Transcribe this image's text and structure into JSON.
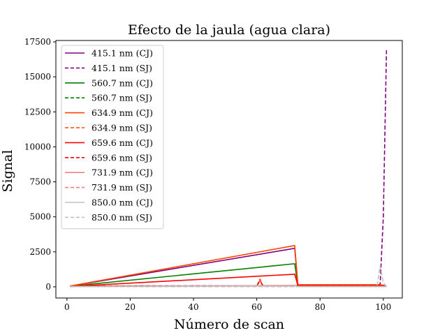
{
  "chart_data": {
    "type": "line",
    "title": "Efecto de la jaula (agua clara)",
    "xlabel": "Número de scan",
    "ylabel": "Signal",
    "xlim": [
      -3.5,
      106
    ],
    "ylim": [
      -800,
      17600
    ],
    "xticks": [
      0,
      20,
      40,
      60,
      80,
      100
    ],
    "yticks": [
      0,
      2500,
      5000,
      7500,
      10000,
      12500,
      15000,
      17500
    ],
    "grid": false,
    "legend_position": "upper-left",
    "series": [
      {
        "name": "415.1 nm (CJ)",
        "color": "#800080",
        "dash": "solid",
        "x": [
          1,
          72,
          73,
          99,
          101
        ],
        "y": [
          50,
          2750,
          120,
          120,
          60
        ]
      },
      {
        "name": "415.1 nm (SJ)",
        "color": "#800080",
        "dash": "dashed",
        "x": [
          1,
          60,
          98,
          99,
          100,
          101
        ],
        "y": [
          60,
          80,
          80,
          200,
          5000,
          16900
        ]
      },
      {
        "name": "560.7 nm (CJ)",
        "color": "#008000",
        "dash": "solid",
        "x": [
          1,
          72,
          73,
          99,
          101
        ],
        "y": [
          40,
          1650,
          100,
          100,
          40
        ]
      },
      {
        "name": "560.7 nm (SJ)",
        "color": "#008000",
        "dash": "dashed",
        "x": [
          1,
          98,
          99,
          101
        ],
        "y": [
          40,
          60,
          120,
          60
        ]
      },
      {
        "name": "634.9 nm (CJ)",
        "color": "#ff4500",
        "dash": "solid",
        "x": [
          1,
          72,
          73,
          99,
          101
        ],
        "y": [
          60,
          2950,
          150,
          150,
          70
        ]
      },
      {
        "name": "634.9 nm (SJ)",
        "color": "#ff4500",
        "dash": "dashed",
        "x": [
          1,
          5,
          6,
          7,
          60,
          61,
          62,
          98,
          101
        ],
        "y": [
          50,
          60,
          250,
          60,
          60,
          550,
          60,
          60,
          50
        ]
      },
      {
        "name": "659.6 nm (CJ)",
        "color": "#ff0000",
        "dash": "solid",
        "x": [
          1,
          72,
          73,
          99,
          101
        ],
        "y": [
          30,
          900,
          80,
          80,
          30
        ]
      },
      {
        "name": "659.6 nm (SJ)",
        "color": "#ff0000",
        "dash": "dashed",
        "x": [
          1,
          60,
          61,
          62,
          101
        ],
        "y": [
          30,
          40,
          450,
          40,
          30
        ]
      },
      {
        "name": "731.9 nm (CJ)",
        "color": "#f08080",
        "dash": "solid",
        "x": [
          1,
          72,
          73,
          101
        ],
        "y": [
          20,
          100,
          20,
          20
        ]
      },
      {
        "name": "731.9 nm (SJ)",
        "color": "#f08080",
        "dash": "dashed",
        "x": [
          1,
          101
        ],
        "y": [
          20,
          20
        ]
      },
      {
        "name": "850.0 nm (CJ)",
        "color": "#c0c0c0",
        "dash": "solid",
        "x": [
          1,
          72,
          73,
          99,
          101
        ],
        "y": [
          20,
          60,
          20,
          20,
          10
        ]
      },
      {
        "name": "850.0 nm (SJ)",
        "color": "#c0c0c0",
        "dash": "dashed",
        "x": [
          1,
          98,
          99,
          100,
          101
        ],
        "y": [
          20,
          30,
          1500,
          300,
          20
        ]
      }
    ]
  }
}
